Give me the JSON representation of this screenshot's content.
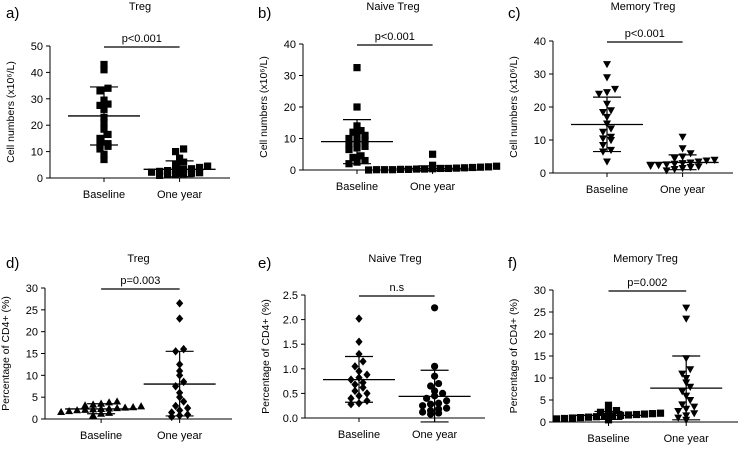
{
  "chart_data": [
    {
      "panel_label": "a)",
      "type": "scatter",
      "title": "Treg",
      "ylabel": "Cell numbers (x10⁶/L)",
      "categories": [
        "Baseline",
        "One year"
      ],
      "ylim": [
        0,
        50
      ],
      "yticks": [
        "0",
        "10",
        "20",
        "30",
        "40",
        "50"
      ],
      "annotation": "p<0.001",
      "marker": "square",
      "series": [
        {
          "name": "Baseline",
          "mean": 23.5,
          "sd_low": 12.5,
          "sd_high": 34.5,
          "values": [
            43,
            41,
            34,
            33,
            29.5,
            28,
            27.5,
            26,
            23,
            21,
            18.5,
            16.5,
            15,
            13,
            12.5,
            12,
            11,
            9,
            7
          ]
        },
        {
          "name": "One year",
          "mean": 3.3,
          "sd_low": 0.5,
          "sd_high": 6.5,
          "values": [
            11,
            10,
            7.5,
            6,
            5,
            4.5,
            4,
            3.5,
            3.2,
            3,
            2.8,
            2.5,
            2.2,
            2,
            1.8,
            1.6,
            1.4,
            1.2,
            1
          ]
        }
      ]
    },
    {
      "panel_label": "b)",
      "type": "scatter",
      "title": "Naive Treg",
      "ylabel": "Cell numbers (x10⁶/L)",
      "categories": [
        "Baseline",
        "One year"
      ],
      "ylim": [
        0,
        40
      ],
      "yticks": [
        "0",
        "10",
        "20",
        "30",
        "40"
      ],
      "annotation": "p<0.001",
      "marker": "square",
      "series": [
        {
          "name": "Baseline",
          "mean": 9,
          "sd_low": 2,
          "sd_high": 16,
          "values": [
            32.5,
            20,
            14,
            12.5,
            12,
            11,
            10.5,
            10,
            9.5,
            8.5,
            8,
            7.5,
            7,
            6.5,
            4.5,
            4,
            3,
            2.5,
            2
          ]
        },
        {
          "name": "One year",
          "mean": 0.5,
          "sd_low": -0.3,
          "sd_high": 1.3,
          "values": [
            5,
            1.5,
            1.2,
            1,
            0.9,
            0.8,
            0.7,
            0.6,
            0.5,
            0.5,
            0.4,
            0.3,
            0.3,
            0.2,
            0.2,
            0.1,
            0.1,
            0.1,
            0
          ]
        }
      ]
    },
    {
      "panel_label": "c)",
      "type": "scatter",
      "title": "Memory Treg",
      "ylabel": "Cell numbers (x10⁶/L)",
      "categories": [
        "Baseline",
        "One year"
      ],
      "ylim": [
        0,
        40
      ],
      "yticks": [
        "0",
        "10",
        "20",
        "30",
        "40"
      ],
      "annotation": "p<0.001",
      "marker": "triangle-down",
      "series": [
        {
          "name": "Baseline",
          "mean": 14.7,
          "sd_low": 6.5,
          "sd_high": 23,
          "values": [
            33,
            29,
            25.5,
            24.5,
            24,
            21,
            19,
            18.5,
            17,
            15,
            13.5,
            12.5,
            11,
            10.5,
            10,
            8.5,
            7,
            6.5,
            3.5
          ]
        },
        {
          "name": "One year",
          "mean": 3.2,
          "sd_low": 1,
          "sd_high": 5.5,
          "values": [
            11,
            7.5,
            6,
            5,
            4.5,
            4,
            3.8,
            3.5,
            3.2,
            3,
            2.8,
            2.6,
            2.4,
            2.2,
            2,
            1.8,
            1.5,
            1.2,
            0.8
          ]
        }
      ]
    },
    {
      "panel_label": "d)",
      "type": "scatter",
      "title": "Treg",
      "ylabel": "Percentage of CD4+ (%)",
      "categories": [
        "Baseline",
        "One year"
      ],
      "ylim": [
        0,
        30
      ],
      "yticks": [
        "0",
        "5",
        "10",
        "15",
        "20",
        "25",
        "30"
      ],
      "annotation": "p=0.003",
      "marker": "triangle-up-vs-diamond",
      "series": [
        {
          "name": "Baseline",
          "mean": 2.3,
          "sd_low": 1.2,
          "sd_high": 3.5,
          "marker": "triangle-up",
          "values": [
            4,
            3.8,
            3.5,
            3.3,
            3.1,
            2.9,
            2.7,
            2.6,
            2.5,
            2.4,
            2.3,
            2.2,
            2.1,
            2,
            1.8,
            1.6,
            1.4,
            1.2,
            0.8
          ]
        },
        {
          "name": "One year",
          "mean": 8,
          "sd_low": 0.7,
          "sd_high": 15.5,
          "marker": "diamond",
          "values": [
            26.5,
            23,
            16,
            15.5,
            12.5,
            11,
            10,
            8.5,
            7.5,
            6,
            5,
            4,
            3,
            2.5,
            2,
            1.5,
            1,
            0.8,
            0.5
          ]
        }
      ]
    },
    {
      "panel_label": "e)",
      "type": "scatter",
      "title": "Naive Treg",
      "ylabel": "Percentage of CD4+ (%)",
      "categories": [
        "Baseline",
        "One year"
      ],
      "ylim": [
        0,
        2.5
      ],
      "yticks": [
        "0.0",
        "0.5",
        "1.0",
        "1.5",
        "2.0",
        "2.5"
      ],
      "annotation": "n.s",
      "marker": "diamond-vs-circle",
      "series": [
        {
          "name": "Baseline",
          "mean": 0.78,
          "sd_low": 0.32,
          "sd_high": 1.25,
          "marker": "diamond",
          "values": [
            2.02,
            1.55,
            1.3,
            1.15,
            1.05,
            0.95,
            0.88,
            0.82,
            0.78,
            0.72,
            0.68,
            0.62,
            0.55,
            0.5,
            0.45,
            0.4,
            0.35,
            0.3,
            0.28
          ]
        },
        {
          "name": "One year",
          "mean": 0.44,
          "sd_low": -0.08,
          "sd_high": 0.97,
          "marker": "circle",
          "values": [
            2.24,
            1.05,
            0.85,
            0.7,
            0.65,
            0.55,
            0.5,
            0.45,
            0.4,
            0.35,
            0.3,
            0.28,
            0.25,
            0.2,
            0.18,
            0.15,
            0.12,
            0.1,
            0.08
          ]
        }
      ]
    },
    {
      "panel_label": "f)",
      "type": "scatter",
      "title": "Memory Treg",
      "ylabel": "Percentage of CD4+ (%)",
      "categories": [
        "Baseline",
        "One year"
      ],
      "ylim": [
        0,
        30
      ],
      "yticks": [
        "0",
        "5",
        "10",
        "15",
        "20",
        "25",
        "30"
      ],
      "annotation": "p=0.002",
      "marker": "square-vs-triangle-down",
      "series": [
        {
          "name": "Baseline",
          "mean": 1.5,
          "sd_low": 0.6,
          "sd_high": 2.4,
          "marker": "square",
          "values": [
            3.8,
            2.6,
            2.4,
            2.2,
            2,
            1.9,
            1.8,
            1.7,
            1.6,
            1.5,
            1.4,
            1.3,
            1.2,
            1.1,
            1,
            0.9,
            0.8,
            0.7,
            0.5
          ]
        },
        {
          "name": "One year",
          "mean": 7.7,
          "sd_low": 0.5,
          "sd_high": 15,
          "marker": "triangle-down",
          "values": [
            26,
            23.5,
            14.5,
            12,
            11,
            10,
            9,
            8,
            7,
            6,
            5,
            4,
            3.5,
            3,
            2.5,
            2,
            1.5,
            1,
            0.5
          ]
        }
      ]
    }
  ]
}
